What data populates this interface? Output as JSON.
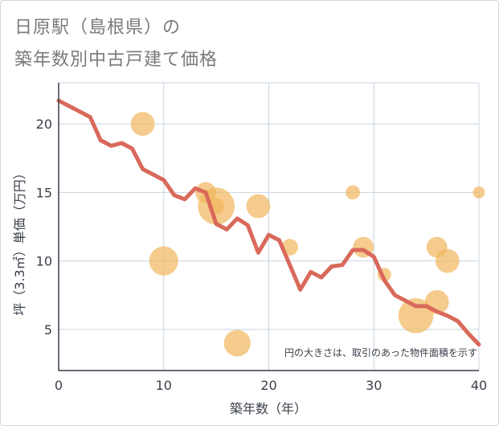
{
  "chart_data": {
    "type": "scatter",
    "title_line1": "日原駅（島根県）の",
    "title_line2": "築年数別中古戸建て価格",
    "xlabel": "築年数（年）",
    "ylabel": "坪（3.3㎡）単価（万円）",
    "xlim": [
      0,
      40
    ],
    "ylim": [
      2,
      23
    ],
    "xticks": [
      0,
      10,
      20,
      30,
      40
    ],
    "yticks": [
      5,
      10,
      15,
      20
    ],
    "xtick_labels": [
      "0",
      "10",
      "20",
      "30",
      "40"
    ],
    "ytick_labels": [
      "5",
      "10",
      "15",
      "20"
    ],
    "note": "円の大きさは、取引のあった物件面積を示す",
    "colors": {
      "line": "#d9695a",
      "bubble": "#f1b75c",
      "grid": "#c8d4e0",
      "axis": "#3a3f4a"
    },
    "bubbles": [
      {
        "x": 8,
        "y": 20,
        "size": 3
      },
      {
        "x": 10,
        "y": 10,
        "size": 5
      },
      {
        "x": 14,
        "y": 15,
        "size": 2
      },
      {
        "x": 15,
        "y": 14,
        "size": 9
      },
      {
        "x": 15,
        "y": 14,
        "size": 1
      },
      {
        "x": 17,
        "y": 4,
        "size": 4
      },
      {
        "x": 19,
        "y": 14,
        "size": 3
      },
      {
        "x": 22,
        "y": 11,
        "size": 1
      },
      {
        "x": 28,
        "y": 15,
        "size": 0.6
      },
      {
        "x": 29,
        "y": 11,
        "size": 2
      },
      {
        "x": 31,
        "y": 9,
        "size": 0.5
      },
      {
        "x": 34,
        "y": 6,
        "size": 8
      },
      {
        "x": 36,
        "y": 7,
        "size": 3
      },
      {
        "x": 36,
        "y": 11,
        "size": 2
      },
      {
        "x": 37,
        "y": 10,
        "size": 3
      },
      {
        "x": 40,
        "y": 15,
        "size": 0.3
      }
    ],
    "line": {
      "x": [
        0,
        1,
        2,
        3,
        4,
        5,
        6,
        7,
        8,
        9,
        10,
        11,
        12,
        13,
        14,
        15,
        16,
        17,
        18,
        19,
        20,
        21,
        22,
        23,
        24,
        25,
        26,
        27,
        28,
        29,
        30,
        31,
        32,
        33,
        34,
        35,
        36,
        37,
        38,
        39,
        40
      ],
      "y": [
        21.7,
        21.3,
        20.9,
        20.5,
        18.8,
        18.4,
        18.6,
        18.2,
        16.7,
        16.3,
        15.9,
        14.8,
        14.5,
        15.3,
        15.0,
        12.7,
        12.3,
        13.1,
        12.6,
        10.6,
        11.9,
        11.5,
        9.7,
        7.9,
        9.2,
        8.8,
        9.6,
        9.7,
        10.8,
        10.8,
        10.3,
        8.6,
        7.5,
        7.1,
        6.7,
        6.7,
        6.3,
        6.0,
        5.6,
        4.7,
        3.9
      ]
    }
  }
}
